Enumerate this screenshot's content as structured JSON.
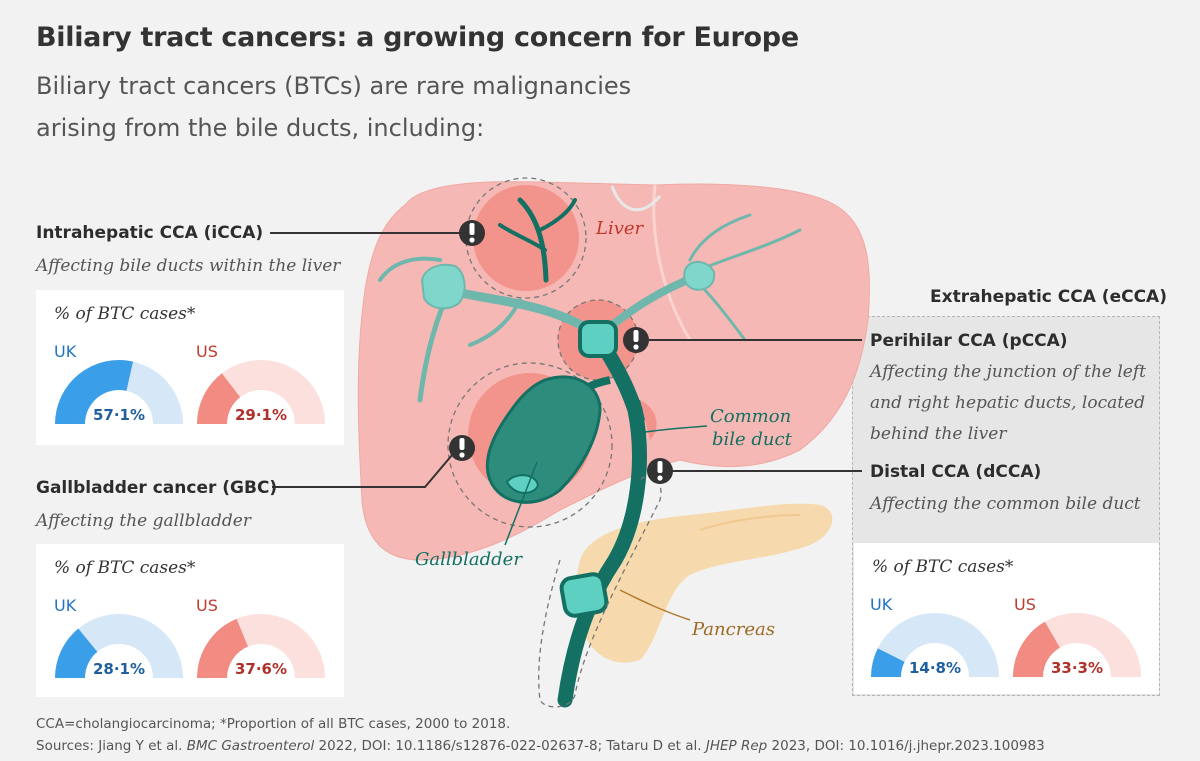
{
  "header": {
    "title": "Biliary tract cancers: a growing concern for Europe",
    "subtitle_line1": "Biliary tract cancers (BTCs) are rare malignancies",
    "subtitle_line2": "arising from the bile ducts, including:"
  },
  "colors": {
    "uk_fill": "#3b9ee8",
    "uk_bg": "#d6e8f8",
    "us_fill": "#f28b82",
    "us_bg": "#fce0de",
    "liver": "#f6b8b4",
    "duct": "#137063",
    "node": "#5ed0c2"
  },
  "icons": {
    "alert": "exclamation-icon"
  },
  "icca": {
    "title": "Intrahepatic CCA (iCCA)",
    "desc": "Affecting bile ducts within the liver",
    "card": {
      "heading": "% of BTC cases*",
      "uk_label": "UK",
      "us_label": "US",
      "uk_text": "57·1%",
      "us_text": "29·1%",
      "uk_value": 57.1,
      "us_value": 29.1
    }
  },
  "gbc": {
    "title": "Gallbladder cancer (GBC)",
    "desc": "Affecting the gallbladder",
    "card": {
      "heading": "% of BTC cases*",
      "uk_label": "UK",
      "us_label": "US",
      "uk_text": "28·1%",
      "us_text": "37·6%",
      "uk_value": 28.1,
      "us_value": 37.6
    }
  },
  "ecca": {
    "heading": "Extrahepatic CCA (eCCA)",
    "pcca_title": "Perihilar CCA (pCCA)",
    "pcca_desc1": "Affecting the junction of the left",
    "pcca_desc2": "and right hepatic ducts, located",
    "pcca_desc3": "behind the liver",
    "dcca_title": "Distal CCA (dCCA)",
    "dcca_desc": "Affecting the common bile duct",
    "card": {
      "heading": "% of BTC cases*",
      "uk_label": "UK",
      "us_label": "US",
      "uk_text": "14·8%",
      "us_text": "33·3%",
      "uk_value": 14.8,
      "us_value": 33.3
    }
  },
  "anatomy": {
    "liver": "Liver",
    "common_bile_duct_1": "Common",
    "common_bile_duct_2": "bile duct",
    "gallbladder": "Gallbladder",
    "pancreas": "Pancreas"
  },
  "footer": {
    "line1": "CCA=cholangiocarcinoma; *Proportion of all BTC cases, 2000 to 2018.",
    "line2_a": "Sources: Jiang Y et al. ",
    "line2_b": "BMC Gastroenterol",
    "line2_c": " 2022, DOI: 10.1186/s12876-022-02637-8; Tataru D et al. ",
    "line2_d": "JHEP Rep",
    "line2_e": " 2023, DOI: 10.1016/j.jhepr.2023.100983"
  }
}
